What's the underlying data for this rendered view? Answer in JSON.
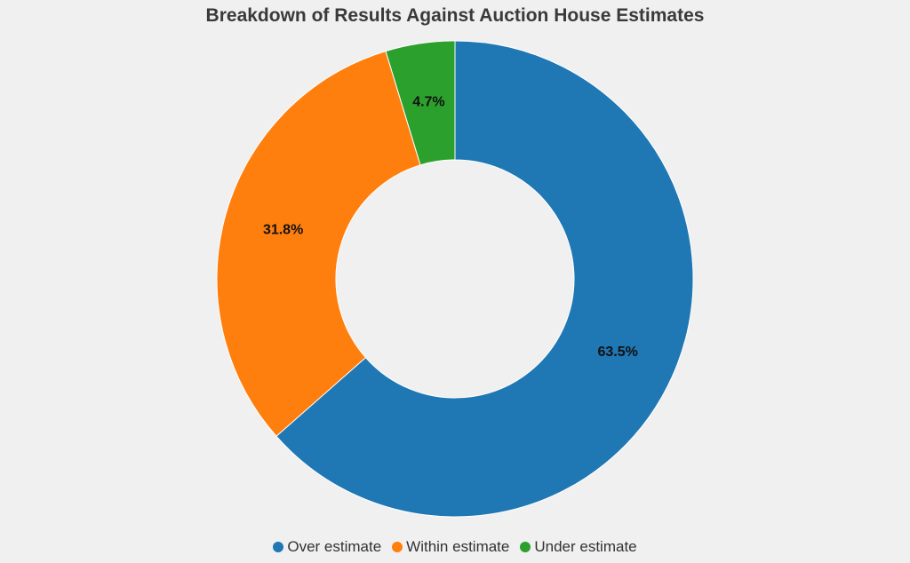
{
  "chart_data": {
    "type": "pie",
    "donut": true,
    "title": "Breakdown of Results Against Auction House Estimates",
    "categories": [
      "Over estimate",
      "Within estimate",
      "Under estimate"
    ],
    "values": [
      63.5,
      31.8,
      4.7
    ],
    "value_labels": [
      "63.5%",
      "31.8%",
      "4.7%"
    ],
    "colors": [
      "#1f77b4",
      "#ff7f0e",
      "#2ca02c"
    ],
    "start_angle_deg": 0,
    "direction": "clockwise",
    "legend_position": "bottom-center"
  }
}
